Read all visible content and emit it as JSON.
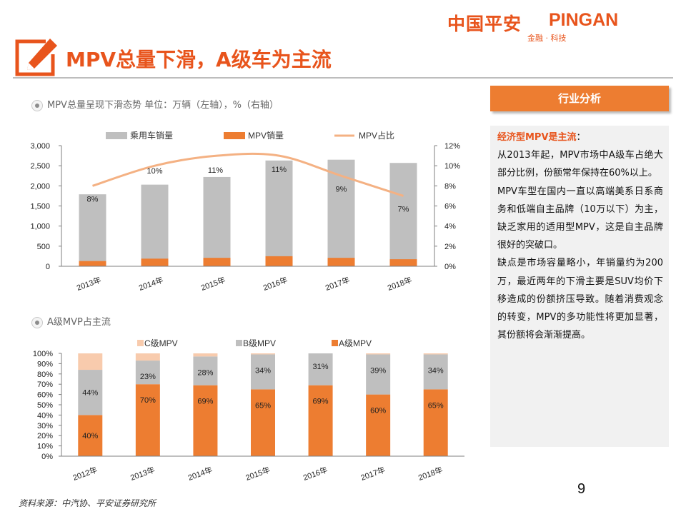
{
  "header": {
    "logo_cn": "中国平安",
    "logo_en": "PINGAN",
    "logo_sub": "金融 · 科技",
    "title": "MPV总量下滑，A级车为主流"
  },
  "section1": {
    "heading": "MPV总量呈现下滑态势   单位：万辆（左轴），%（右轴）"
  },
  "section2": {
    "heading": "A级MVP占主流"
  },
  "panel": {
    "header": "行业分析",
    "highlight": "经济型MPV是主流",
    "highlight_suffix": "：",
    "paragraphs": [
      "从2013年起，MPV市场中A级车占绝大部分比例，份额常年保持在60%以上。",
      "MPV车型在国内一直以高端美系日系商务和低端自主品牌（10万以下）为主，缺乏家用的适用型MPV，这是自主品牌很好的突破口。",
      "缺点是市场容量略小，年销量约为200万，最近两年的下滑主要是SUV均价下移造成的份额挤压导致。随着消费观念的转变，MPV的多功能性将更加显著，其份额将会渐渐提高。"
    ]
  },
  "page_number": "9",
  "source": "资料来源：中汽协、平安证券研究所",
  "colors": {
    "accent": "#ed7d31",
    "gray_bar": "#bfbfbf",
    "line": "#f4b183",
    "c_class": "#f8cbad",
    "text_orange": "#e8541c"
  },
  "chart_data": [
    {
      "type": "bar",
      "categories": [
        "2013年",
        "2014年",
        "2015年",
        "2016年",
        "2017年",
        "2018年"
      ],
      "series": [
        {
          "name": "乘用车销量",
          "values": [
            1790,
            2030,
            2220,
            2630,
            2650,
            2570
          ]
        },
        {
          "name": "MPV销量",
          "values": [
            130,
            190,
            210,
            250,
            210,
            175
          ]
        },
        {
          "name": "MPV占比",
          "values": [
            8,
            10,
            11,
            11,
            9,
            7
          ],
          "labels": [
            "8%",
            "10%",
            "11%",
            "11%",
            "9%",
            "7%"
          ]
        }
      ],
      "y_left": {
        "min": 0,
        "max": 3000,
        "ticks": [
          "0",
          "500",
          "1,000",
          "1,500",
          "2,000",
          "2,500",
          "3,000"
        ]
      },
      "y_right": {
        "min": 0,
        "max": 12,
        "ticks": [
          "0%",
          "2%",
          "4%",
          "6%",
          "8%",
          "10%",
          "12%"
        ]
      },
      "legend": "top"
    },
    {
      "type": "bar",
      "stacked": true,
      "categories": [
        "2012年",
        "2013年",
        "2014年",
        "2015年",
        "2016年",
        "2017年",
        "2018年"
      ],
      "series": [
        {
          "name": "A级MPV",
          "values": [
            40,
            70,
            69,
            65,
            69,
            60,
            65
          ],
          "labels": [
            "40%",
            "70%",
            "69%",
            "65%",
            "69%",
            "60%",
            "65%"
          ]
        },
        {
          "name": "B级MPV",
          "values": [
            44,
            23,
            28,
            34,
            31,
            39,
            34
          ],
          "labels": [
            "44%",
            "23%",
            "28%",
            "34%",
            "31%",
            "39%",
            "34%"
          ]
        },
        {
          "name": "C级MPV",
          "values": [
            16,
            7,
            3,
            1,
            0,
            1,
            1
          ]
        }
      ],
      "y": {
        "min": 0,
        "max": 100,
        "ticks": [
          "0%",
          "10%",
          "20%",
          "30%",
          "40%",
          "50%",
          "60%",
          "70%",
          "80%",
          "90%",
          "100%"
        ]
      },
      "legend": "top"
    }
  ]
}
